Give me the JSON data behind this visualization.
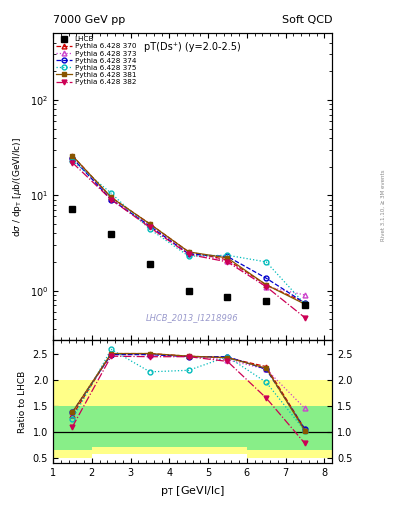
{
  "title_left": "7000 GeV pp",
  "title_right": "Soft QCD",
  "plot_title": "pT(Ds⁺) (y=2.0-2.5)",
  "ylabel_main": "dσ / dp_T [μb/(GeVI/lc)]",
  "ylabel_ratio": "Ratio to LHCB",
  "xlabel": "p_T [GeVI/lc]",
  "watermark": "LHCB_2013_I1218996",
  "right_label": "Rivet 3.1.10, ≥ 3M events",
  "lhcb_x": [
    1.5,
    2.5,
    3.5,
    4.5,
    5.5,
    6.5,
    7.5
  ],
  "lhcb_y": [
    7.2,
    3.9,
    1.9,
    1.0,
    0.85,
    0.78,
    0.7
  ],
  "series": [
    {
      "label": "Pythia 6.428 370",
      "color": "#cc0000",
      "linestyle": "--",
      "marker": "^",
      "markerfill": "none",
      "x": [
        1.5,
        2.5,
        3.5,
        4.5,
        5.5,
        6.5,
        7.5
      ],
      "y": [
        26.0,
        9.5,
        5.0,
        2.55,
        2.1,
        1.15,
        0.75
      ],
      "ratio": [
        1.32,
        2.5,
        2.5,
        2.45,
        2.42,
        2.25,
        1.05
      ]
    },
    {
      "label": "Pythia 6.428 373",
      "color": "#cc44cc",
      "linestyle": ":",
      "marker": "^",
      "markerfill": "none",
      "x": [
        1.5,
        2.5,
        3.5,
        4.5,
        5.5,
        6.5,
        7.5
      ],
      "y": [
        25.0,
        9.2,
        4.85,
        2.48,
        2.05,
        1.1,
        0.9
      ],
      "ratio": [
        1.38,
        2.5,
        2.48,
        2.45,
        2.38,
        2.2,
        1.45
      ]
    },
    {
      "label": "Pythia 6.428 374",
      "color": "#0000cc",
      "linestyle": "--",
      "marker": "o",
      "markerfill": "none",
      "x": [
        1.5,
        2.5,
        3.5,
        4.5,
        5.5,
        6.5,
        7.5
      ],
      "y": [
        24.5,
        9.0,
        4.75,
        2.42,
        2.28,
        1.35,
        0.74
      ],
      "ratio": [
        1.38,
        2.48,
        2.48,
        2.44,
        2.44,
        2.2,
        1.05
      ]
    },
    {
      "label": "Pythia 6.428 375",
      "color": "#00bbbb",
      "linestyle": ":",
      "marker": "o",
      "markerfill": "none",
      "x": [
        1.5,
        2.5,
        3.5,
        4.5,
        5.5,
        6.5,
        7.5
      ],
      "y": [
        23.0,
        10.5,
        4.4,
        2.3,
        2.35,
        2.0,
        0.72
      ],
      "ratio": [
        1.25,
        2.58,
        2.15,
        2.18,
        2.44,
        1.95,
        1.02
      ]
    },
    {
      "label": "Pythia 6.428 381",
      "color": "#885500",
      "linestyle": "-",
      "marker": "s",
      "markerfill": "full",
      "x": [
        1.5,
        2.5,
        3.5,
        4.5,
        5.5,
        6.5,
        7.5
      ],
      "y": [
        26.0,
        9.5,
        5.0,
        2.55,
        2.2,
        1.15,
        0.72
      ],
      "ratio": [
        1.38,
        2.5,
        2.5,
        2.45,
        2.42,
        2.22,
        1.02
      ]
    },
    {
      "label": "Pythia 6.428 382",
      "color": "#cc0055",
      "linestyle": "-.",
      "marker": "v",
      "markerfill": "full",
      "x": [
        1.5,
        2.5,
        3.5,
        4.5,
        5.5,
        6.5,
        7.5
      ],
      "y": [
        22.0,
        9.0,
        4.6,
        2.4,
        2.0,
        1.1,
        0.52
      ],
      "ratio": [
        1.1,
        2.45,
        2.44,
        2.44,
        2.35,
        1.65,
        0.78
      ]
    }
  ],
  "ylim_main": [
    0.3,
    500
  ],
  "ylim_ratio": [
    0.4,
    2.75
  ],
  "yticks_ratio": [
    0.5,
    1.0,
    1.5,
    2.0,
    2.5
  ],
  "xlim": [
    1.0,
    8.2
  ],
  "yellow_edges": [
    1.0,
    2.0,
    3.0,
    5.0,
    6.0,
    8.2
  ],
  "yellow_tops": [
    2.0,
    2.0,
    2.0,
    2.0,
    2.0,
    2.0
  ],
  "yellow_bots": [
    0.5,
    0.58,
    0.58,
    0.58,
    0.5,
    0.5
  ],
  "green_tops": [
    1.5,
    1.5,
    1.5,
    1.5,
    1.5,
    1.5
  ],
  "green_bots": [
    0.65,
    0.72,
    0.72,
    0.72,
    0.65,
    0.65
  ]
}
